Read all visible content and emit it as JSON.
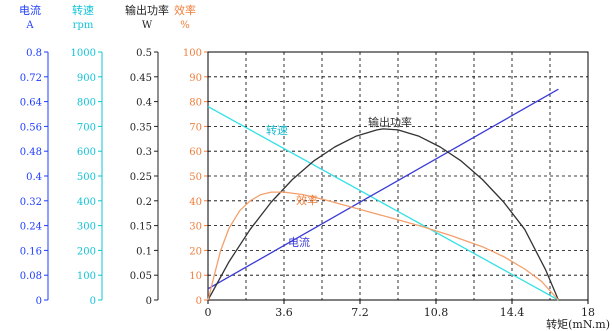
{
  "chart_data": {
    "type": "line",
    "x_axis": {
      "label": "转矩(mN.m)",
      "range": [
        0,
        18
      ],
      "ticks": [
        "0",
        "3.6",
        "7.2",
        "10.8",
        "14.4",
        "18"
      ]
    },
    "y_axes": [
      {
        "id": "current",
        "header": "电流",
        "unit": "A",
        "color": "#1f3dff",
        "ticks": [
          "0",
          "0.08",
          "0.16",
          "0.24",
          "0.32",
          "0.4",
          "0.48",
          "0.56",
          "0.64",
          "0.72",
          "0.8"
        ]
      },
      {
        "id": "speed",
        "header": "转速",
        "unit": "rpm",
        "color": "#10c4d8",
        "ticks": [
          "0",
          "100",
          "200",
          "300",
          "400",
          "500",
          "600",
          "700",
          "800",
          "900",
          "1000"
        ]
      },
      {
        "id": "power",
        "header": "输出功率",
        "unit": "W",
        "color": "#222222",
        "ticks": [
          "0",
          "0.05",
          "0.1",
          "0.15",
          "0.2",
          "0.25",
          "0.3",
          "0.35",
          "0.4",
          "0.45",
          "0.5"
        ]
      },
      {
        "id": "efficiency",
        "header": "效率",
        "unit": "%",
        "color": "#f07d3a",
        "ticks": [
          "0",
          "10",
          "20",
          "30",
          "40",
          "50",
          "60",
          "70",
          "80",
          "90",
          "100"
        ]
      }
    ],
    "grid": true,
    "series": [
      {
        "name": "转速",
        "color": "#33e0e6",
        "x": [
          0,
          16.6
        ],
        "y": [
          78,
          0
        ]
      },
      {
        "name": "电流",
        "color": "#3a3ad8",
        "x": [
          0,
          16.6
        ],
        "y": [
          4.5,
          85
        ]
      },
      {
        "name": "输出功率",
        "color": "#333333",
        "x": [
          0,
          1,
          2,
          3,
          4,
          5,
          6,
          7,
          8,
          8.3,
          9,
          10,
          11,
          12,
          13,
          14,
          15,
          16,
          16.6
        ],
        "y": [
          0,
          15.5,
          28.5,
          39.5,
          48.6,
          56,
          61.7,
          66,
          68.6,
          69,
          68.6,
          66,
          61.7,
          56,
          48.6,
          39.5,
          28.5,
          12,
          0
        ]
      },
      {
        "name": "效率",
        "color": "#f4a06c",
        "x": [
          0,
          0.3,
          0.6,
          1,
          1.5,
          2,
          2.5,
          3,
          3.6,
          4.5,
          5.5,
          7,
          8.5,
          10,
          11.5,
          13,
          14,
          15,
          15.8,
          16.6
        ],
        "y": [
          0,
          10,
          20,
          29,
          36,
          40,
          42.5,
          43.5,
          43.5,
          42.5,
          40.5,
          37,
          33.5,
          30,
          26,
          21.5,
          17.5,
          12.5,
          7.5,
          0
        ]
      }
    ]
  }
}
